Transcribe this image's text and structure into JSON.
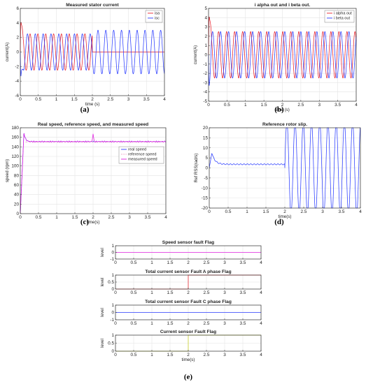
{
  "chart_data": [
    {
      "id": "a",
      "type": "line",
      "panel_label": "(a)",
      "title": "Measured stator current",
      "xlabel": "time (s)",
      "ylabel": "current(A)",
      "xlim": [
        0,
        4
      ],
      "ylim": [
        -6,
        6
      ],
      "xticks": [
        0,
        0.5,
        1,
        1.5,
        2,
        2.5,
        3,
        3.5,
        4
      ],
      "yticks": [
        -6,
        -4,
        -2,
        0,
        2,
        4,
        6
      ],
      "grid": true,
      "legend_position": "top-right",
      "series": [
        {
          "name": "isa",
          "color": "#e8202a",
          "signal": "sine",
          "amplitude": 2.5,
          "frequency_hz": 4.6,
          "phase_deg": 0,
          "stops_at": 2.0,
          "after_value": 0,
          "startup_peak": 5.0
        },
        {
          "name": "isc",
          "color": "#2a3cff",
          "signal": "sine",
          "amplitude": 2.5,
          "frequency_hz": 4.6,
          "phase_deg": 120,
          "amplitude_after_2s": 3.0,
          "startup_peak": -4.7
        }
      ]
    },
    {
      "id": "b",
      "type": "line",
      "panel_label": "(b)",
      "title": "i alpha out and i beta out.",
      "xlabel": "time (s)",
      "ylabel": "current(A)",
      "xlim": [
        0,
        4
      ],
      "ylim": [
        -5,
        5
      ],
      "xticks": [
        0,
        0.5,
        1,
        1.5,
        2,
        2.5,
        3,
        3.5,
        4
      ],
      "yticks": [
        -5,
        -4,
        -3,
        -2,
        -1,
        0,
        1,
        2,
        3,
        4,
        5
      ],
      "grid": true,
      "legend_position": "top-right",
      "series": [
        {
          "name": "i alpha out",
          "color": "#e8202a",
          "signal": "sine",
          "amplitude": 2.5,
          "frequency_hz": 4.6,
          "phase_deg": 0,
          "startup_peak": 5.0
        },
        {
          "name": "i beta out",
          "color": "#2a3cff",
          "signal": "sine",
          "amplitude": 2.5,
          "frequency_hz": 4.6,
          "phase_deg": -90,
          "startup_peak": -3.7
        }
      ]
    },
    {
      "id": "c",
      "type": "line",
      "panel_label": "(c)",
      "title": "Real speed, reference speed, and measured speed",
      "xlabel": "time(s)",
      "ylabel": "speed (rpm)",
      "xlim": [
        0,
        4
      ],
      "ylim": [
        0,
        180
      ],
      "xticks": [
        0,
        0.5,
        1,
        1.5,
        2,
        2.5,
        3,
        3.5,
        4
      ],
      "yticks": [
        0,
        20,
        40,
        60,
        80,
        100,
        120,
        140,
        160,
        180
      ],
      "grid": true,
      "legend_position": "right",
      "series": [
        {
          "name": "real speed",
          "color": "#2a3cff",
          "signal": "step",
          "final": 151,
          "overshoot": 170,
          "rise_time": 0.1
        },
        {
          "name": "reference speed",
          "color": "#f0a0c8",
          "signal": "step",
          "final": 150,
          "dashed": true
        },
        {
          "name": "measured speed",
          "color": "#e020e0",
          "signal": "step",
          "final": 151,
          "overshoot": 170,
          "rise_time": 0.1,
          "spike_at": 2.0,
          "spike_value": 168
        }
      ]
    },
    {
      "id": "d",
      "type": "line",
      "panel_label": "(d)",
      "title": "Reference rotor slip.",
      "xlabel": "time(s)",
      "ylabel": "Ref RSS(rad/s)",
      "xlim": [
        0,
        4
      ],
      "ylim": [
        -20,
        20
      ],
      "xticks": [
        0,
        0.5,
        1,
        1.5,
        2,
        2.5,
        3,
        3.5,
        4
      ],
      "yticks": [
        -20,
        -15,
        -10,
        -5,
        0,
        5,
        10,
        15,
        20
      ],
      "grid": true,
      "series": [
        {
          "name": "",
          "color": "#2a3cff",
          "signal": "slip",
          "peak": 7.5,
          "steady": 1.8,
          "oscillation_after": 2.0,
          "oscillation_amplitude": 20,
          "oscillation_frequency_hz": 4.6
        }
      ]
    },
    {
      "id": "e1",
      "type": "line",
      "title": "Speed sensor fault Flag",
      "ylabel": "level",
      "xlim": [
        0,
        4
      ],
      "ylim": [
        -1,
        1
      ],
      "xticks": [
        0,
        0.5,
        1,
        1.5,
        2,
        2.5,
        3,
        3.5,
        4
      ],
      "yticks": [
        -1,
        0,
        1
      ],
      "grid": true,
      "series": [
        {
          "name": "",
          "color": "#e020e0",
          "signal": "step_flag",
          "before": 0,
          "after": 0,
          "switch_at": 2.0
        }
      ]
    },
    {
      "id": "e2",
      "type": "line",
      "title": "Total current sensor Fault A phase Flag",
      "ylabel": "level",
      "xlim": [
        0,
        4
      ],
      "ylim": [
        0,
        1
      ],
      "xticks": [
        0,
        0.5,
        1,
        1.5,
        2,
        2.5,
        3,
        3.5,
        4
      ],
      "yticks": [
        0,
        0.5,
        1
      ],
      "grid": true,
      "series": [
        {
          "name": "",
          "color": "#e8202a",
          "signal": "step_flag",
          "before": 0,
          "after": 1,
          "switch_at": 2.0
        }
      ]
    },
    {
      "id": "e3",
      "type": "line",
      "title": "Total current sensor Fault C phase Flag",
      "ylabel": "level",
      "xlim": [
        0,
        4
      ],
      "ylim": [
        -1,
        1
      ],
      "xticks": [
        0,
        0.5,
        1,
        1.5,
        2,
        2.5,
        3,
        3.5,
        4
      ],
      "yticks": [
        -1,
        0,
        1
      ],
      "grid": true,
      "series": [
        {
          "name": "",
          "color": "#2a3cff",
          "signal": "step_flag",
          "before": 0,
          "after": 0,
          "switch_at": 2.0
        }
      ]
    },
    {
      "id": "e4",
      "type": "line",
      "title": "Current sensor Fault Flag",
      "ylabel": "level",
      "xlabel": "time(s)",
      "xlim": [
        0,
        4
      ],
      "ylim": [
        0,
        1
      ],
      "xticks": [
        0,
        0.5,
        1,
        1.5,
        2,
        2.5,
        3,
        3.5,
        4
      ],
      "yticks": [
        0,
        0.5,
        1
      ],
      "grid": true,
      "series": [
        {
          "name": "",
          "color": "#c8d020",
          "signal": "step_flag",
          "before": 0,
          "after": 1,
          "switch_at": 2.0
        }
      ]
    }
  ],
  "figure_label_e": "(e)"
}
